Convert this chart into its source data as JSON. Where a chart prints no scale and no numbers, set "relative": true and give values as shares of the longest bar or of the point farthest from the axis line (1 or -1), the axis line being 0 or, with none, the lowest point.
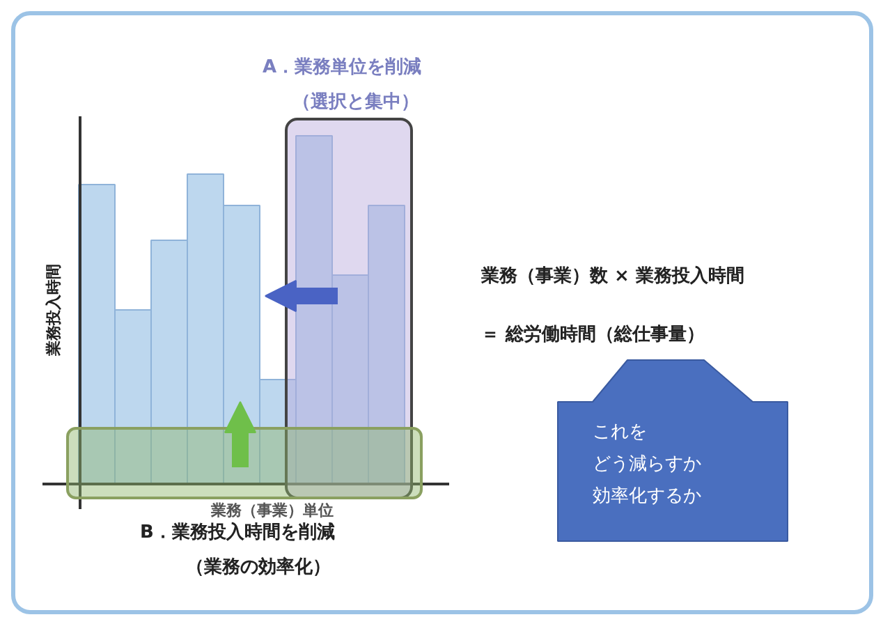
{
  "chart_data": {
    "type": "bar",
    "relative": true,
    "categories": [
      null,
      null,
      null,
      null,
      null,
      null,
      null,
      null,
      null
    ],
    "values": [
      0.86,
      0.5,
      0.7,
      0.89,
      0.8,
      0.3,
      1,
      0.6,
      0.8
    ],
    "color": "#bdd7ee",
    "bands": [
      {
        "axis": "y",
        "from": -0.04,
        "to": 0.16,
        "color": "#8fb56a"
      }
    ],
    "xlabel": "業務（事業）単位",
    "ylabel": "業務投入時間",
    "annotations": [
      "A．業務単位を削減",
      "（選択と集中）",
      "B．業務投入時間を削減",
      "（業務の効率化）",
      "業務（事業）数 × 業務投入時間",
      "＝ 総労働時間（総仕事量）",
      "これを",
      "どう減らすか",
      "効率化するか"
    ]
  }
}
